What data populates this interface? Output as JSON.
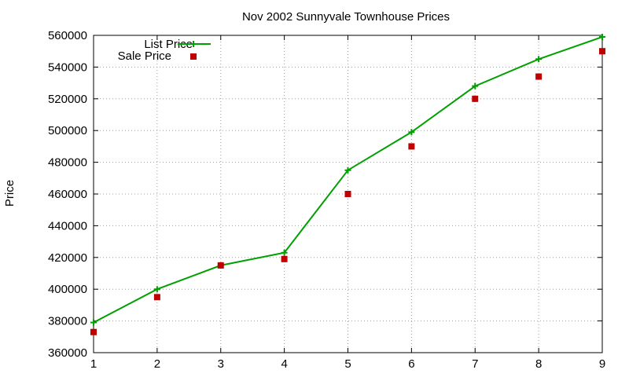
{
  "chart_data": {
    "type": "line",
    "title": "Nov 2002 Sunnyvale Townhouse Prices",
    "xlabel": "",
    "ylabel": "Price",
    "xlim": [
      1,
      9
    ],
    "ylim": [
      360000,
      560000
    ],
    "x_ticks": [
      "1",
      "2",
      "3",
      "4",
      "5",
      "6",
      "7",
      "8",
      "9"
    ],
    "y_ticks": [
      "360000",
      "380000",
      "400000",
      "420000",
      "440000",
      "460000",
      "480000",
      "500000",
      "520000",
      "540000",
      "560000"
    ],
    "grid": true,
    "legend_position": "top-left",
    "x": [
      1,
      2,
      3,
      4,
      5,
      6,
      7,
      8,
      9
    ],
    "series": [
      {
        "name": "List Price",
        "style": "line-with-plus-markers",
        "color": "#00a000",
        "values": [
          379000,
          400000,
          415000,
          423000,
          475000,
          499000,
          528000,
          545000,
          559000
        ]
      },
      {
        "name": "Sale Price",
        "style": "square-markers",
        "color": "#c00000",
        "values": [
          373000,
          395000,
          415000,
          419000,
          460000,
          490000,
          520000,
          534000,
          550000
        ]
      }
    ]
  }
}
